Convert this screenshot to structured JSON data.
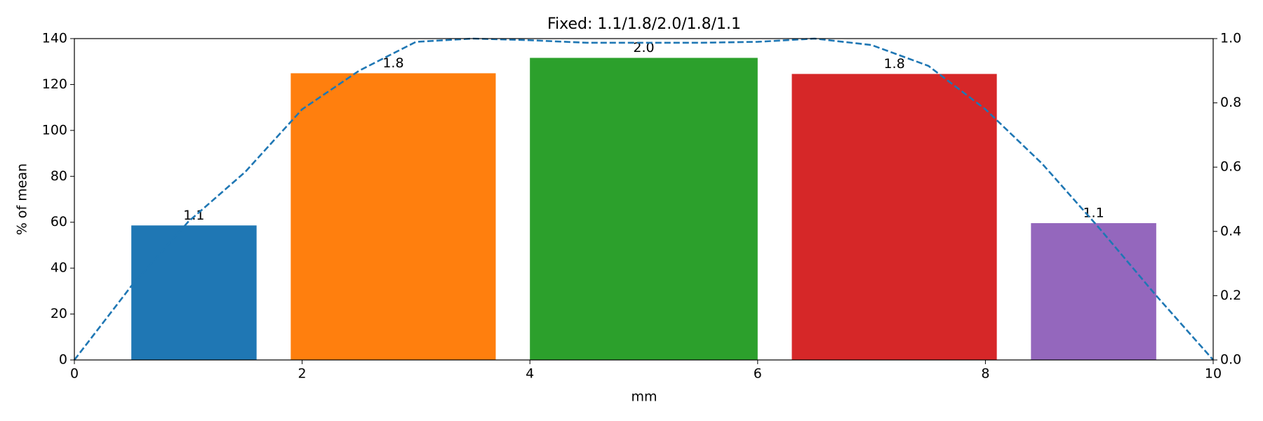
{
  "chart_data": {
    "type": "bar",
    "title": "Fixed: 1.1/1.8/2.0/1.8/1.1",
    "xlabel": "mm",
    "ylabel": "% of mean",
    "bars": {
      "x": [
        0.5,
        1.9,
        4.0,
        6.3,
        8.4
      ],
      "widths": [
        1.1,
        1.8,
        2.0,
        1.8,
        1.1
      ],
      "width_labels": [
        "1.1",
        "1.8",
        "2.0",
        "1.8",
        "1.1"
      ],
      "values": [
        58.6,
        124.9,
        131.6,
        124.6,
        59.6
      ],
      "colors": [
        "#1f77b4",
        "#ff7f0e",
        "#2ca02c",
        "#d62728",
        "#9467bd"
      ]
    },
    "line": {
      "axis": "y2",
      "color": "#1f77b4",
      "style": "dashed",
      "x": [
        0,
        0.5,
        1,
        1.5,
        2,
        2.5,
        3,
        3.5,
        4,
        4.5,
        5,
        5.5,
        6,
        6.5,
        7,
        7.5,
        8,
        8.5,
        9,
        9.5,
        10
      ],
      "values": [
        0,
        0.23,
        0.43,
        0.585,
        0.78,
        0.9,
        0.99,
        1.0,
        0.995,
        0.987,
        0.987,
        0.987,
        0.99,
        1.0,
        0.98,
        0.915,
        0.78,
        0.61,
        0.41,
        0.2,
        0
      ]
    },
    "xlim": [
      0,
      10
    ],
    "xticks": [
      0,
      2,
      4,
      6,
      8,
      10
    ],
    "ylim": [
      0,
      140
    ],
    "yticks": [
      0,
      20,
      40,
      60,
      80,
      100,
      120,
      140
    ],
    "y2lim": [
      0,
      1.0
    ],
    "y2ticks": [
      {
        "value": 0,
        "label": "0.0"
      },
      {
        "value": 0.2,
        "label": "0.2"
      },
      {
        "value": 0.4,
        "label": "0.4"
      },
      {
        "value": 0.6,
        "label": "0.6"
      },
      {
        "value": 0.8,
        "label": "0.8"
      },
      {
        "value": 1.0,
        "label": "1.0"
      }
    ]
  }
}
